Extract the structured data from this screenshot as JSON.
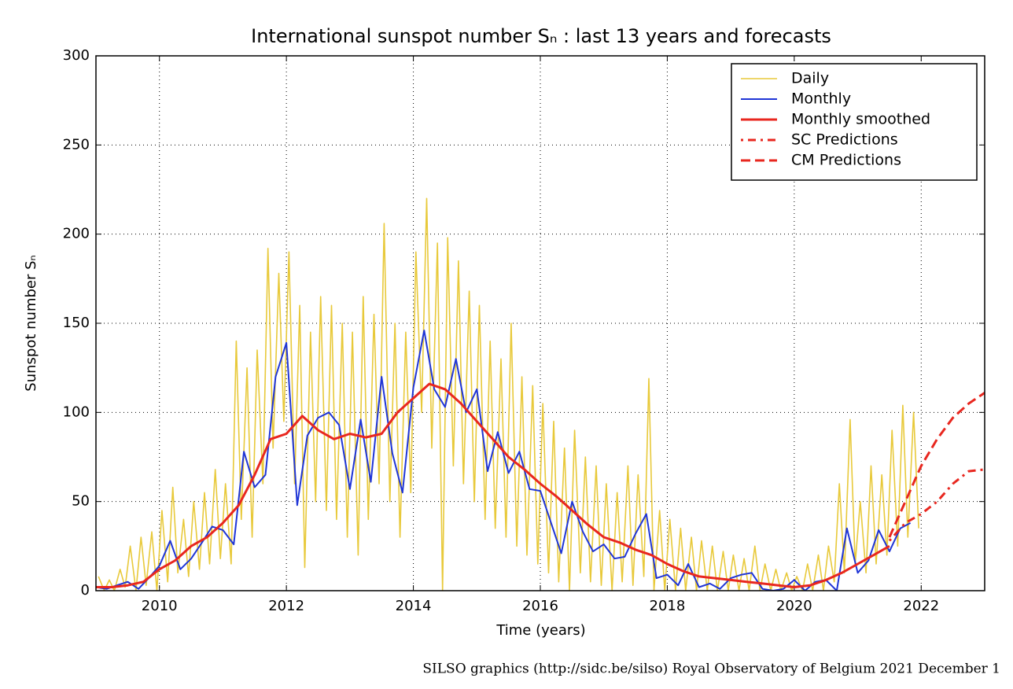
{
  "chart_data": {
    "type": "line",
    "title": "International sunspot number Sₙ : last 13 years and forecasts",
    "x_label": "Time (years)",
    "y_label": "Sunspot number Sₙ",
    "footer": "SILSO graphics (http://sidc.be/silso)  Royal Observatory of Belgium  2021 December 1",
    "xlim": [
      2009,
      2023
    ],
    "ylim": [
      0,
      300
    ],
    "xticks": [
      2010,
      2012,
      2014,
      2016,
      2018,
      2020,
      2022
    ],
    "yticks": [
      0,
      50,
      100,
      150,
      200,
      250,
      300
    ],
    "grid": true,
    "legend": "upper right",
    "series": [
      {
        "name": "Daily",
        "color": "#e8c93a",
        "dash": "solid",
        "width": 1.6,
        "x": [
          2009.04,
          2009.13,
          2009.21,
          2009.29,
          2009.38,
          2009.46,
          2009.54,
          2009.63,
          2009.71,
          2009.79,
          2009.88,
          2009.96,
          2010.04,
          2010.13,
          2010.21,
          2010.29,
          2010.38,
          2010.46,
          2010.54,
          2010.63,
          2010.71,
          2010.79,
          2010.88,
          2010.96,
          2011.04,
          2011.13,
          2011.21,
          2011.29,
          2011.38,
          2011.46,
          2011.54,
          2011.63,
          2011.71,
          2011.79,
          2011.88,
          2011.96,
          2012.04,
          2012.13,
          2012.21,
          2012.29,
          2012.38,
          2012.46,
          2012.54,
          2012.63,
          2012.71,
          2012.79,
          2012.88,
          2012.96,
          2013.04,
          2013.13,
          2013.21,
          2013.29,
          2013.38,
          2013.46,
          2013.54,
          2013.63,
          2013.71,
          2013.79,
          2013.88,
          2013.96,
          2014.04,
          2014.13,
          2014.21,
          2014.29,
          2014.38,
          2014.46,
          2014.54,
          2014.63,
          2014.71,
          2014.79,
          2014.88,
          2014.96,
          2015.04,
          2015.13,
          2015.21,
          2015.29,
          2015.38,
          2015.46,
          2015.54,
          2015.63,
          2015.71,
          2015.79,
          2015.88,
          2015.96,
          2016.04,
          2016.13,
          2016.21,
          2016.29,
          2016.38,
          2016.46,
          2016.54,
          2016.63,
          2016.71,
          2016.79,
          2016.88,
          2016.96,
          2017.04,
          2017.13,
          2017.21,
          2017.29,
          2017.38,
          2017.46,
          2017.54,
          2017.63,
          2017.71,
          2017.79,
          2017.88,
          2017.96,
          2018.04,
          2018.13,
          2018.21,
          2018.29,
          2018.38,
          2018.46,
          2018.54,
          2018.63,
          2018.71,
          2018.79,
          2018.88,
          2018.96,
          2019.04,
          2019.13,
          2019.21,
          2019.29,
          2019.38,
          2019.46,
          2019.54,
          2019.63,
          2019.71,
          2019.79,
          2019.88,
          2019.96,
          2020.04,
          2020.13,
          2020.21,
          2020.29,
          2020.38,
          2020.46,
          2020.54,
          2020.63,
          2020.71,
          2020.79,
          2020.88,
          2020.96,
          2021.04,
          2021.13,
          2021.21,
          2021.29,
          2021.38,
          2021.46,
          2021.54,
          2021.63,
          2021.71,
          2021.79,
          2021.88,
          2021.96
        ],
        "values": [
          8,
          0,
          6,
          0,
          12,
          2,
          25,
          0,
          30,
          3,
          33,
          0,
          45,
          5,
          58,
          10,
          40,
          8,
          50,
          12,
          55,
          15,
          68,
          18,
          60,
          15,
          140,
          40,
          125,
          30,
          135,
          60,
          192,
          80,
          178,
          95,
          190,
          60,
          160,
          13,
          145,
          50,
          165,
          45,
          160,
          40,
          150,
          30,
          145,
          20,
          165,
          40,
          155,
          60,
          206,
          50,
          150,
          30,
          145,
          55,
          190,
          100,
          220,
          80,
          195,
          0,
          198,
          70,
          185,
          60,
          168,
          50,
          160,
          40,
          140,
          35,
          130,
          30,
          150,
          25,
          120,
          20,
          115,
          15,
          105,
          10,
          95,
          5,
          80,
          0,
          90,
          10,
          75,
          5,
          70,
          3,
          60,
          0,
          55,
          5,
          70,
          3,
          65,
          8,
          119,
          0,
          45,
          0,
          40,
          0,
          35,
          0,
          30,
          0,
          28,
          0,
          25,
          0,
          22,
          0,
          20,
          0,
          18,
          0,
          25,
          0,
          15,
          0,
          12,
          0,
          10,
          0,
          8,
          0,
          15,
          0,
          20,
          0,
          25,
          5,
          60,
          10,
          96,
          15,
          50,
          10,
          70,
          15,
          65,
          20,
          90,
          25,
          104,
          30,
          100,
          35
        ]
      },
      {
        "name": "Monthly",
        "color": "#1f35d6",
        "dash": "solid",
        "width": 2,
        "x": [
          2009.0,
          2009.17,
          2009.33,
          2009.5,
          2009.67,
          2009.83,
          2010.0,
          2010.17,
          2010.33,
          2010.5,
          2010.67,
          2010.83,
          2011.0,
          2011.17,
          2011.33,
          2011.5,
          2011.67,
          2011.83,
          2012.0,
          2012.17,
          2012.33,
          2012.5,
          2012.67,
          2012.83,
          2013.0,
          2013.17,
          2013.33,
          2013.5,
          2013.67,
          2013.83,
          2014.0,
          2014.17,
          2014.33,
          2014.5,
          2014.67,
          2014.83,
          2015.0,
          2015.17,
          2015.33,
          2015.5,
          2015.67,
          2015.83,
          2016.0,
          2016.17,
          2016.33,
          2016.5,
          2016.67,
          2016.83,
          2017.0,
          2017.17,
          2017.33,
          2017.5,
          2017.67,
          2017.83,
          2018.0,
          2018.17,
          2018.33,
          2018.5,
          2018.67,
          2018.83,
          2019.0,
          2019.17,
          2019.33,
          2019.5,
          2019.67,
          2019.83,
          2020.0,
          2020.17,
          2020.33,
          2020.5,
          2020.67,
          2020.83,
          2021.0,
          2021.17,
          2021.33,
          2021.5,
          2021.67,
          2021.83
        ],
        "values": [
          2,
          1,
          3,
          5,
          1,
          7,
          14,
          28,
          12,
          18,
          27,
          36,
          34,
          26,
          78,
          58,
          65,
          120,
          139,
          48,
          87,
          97,
          100,
          93,
          57,
          96,
          61,
          120,
          77,
          55,
          114,
          146,
          113,
          103,
          130,
          100,
          113,
          67,
          89,
          66,
          78,
          57,
          56,
          38,
          21,
          50,
          33,
          22,
          26,
          18,
          19,
          32,
          43,
          7,
          9,
          3,
          15,
          2,
          4,
          1,
          7,
          9,
          10,
          1,
          0,
          1,
          6,
          0,
          5,
          6,
          0,
          35,
          10,
          17,
          34,
          22,
          35,
          38
        ]
      },
      {
        "name": "Monthly smoothed",
        "color": "#e8271f",
        "dash": "solid",
        "width": 3,
        "x": [
          2009,
          2009.25,
          2009.5,
          2009.75,
          2010,
          2010.25,
          2010.5,
          2010.75,
          2011,
          2011.25,
          2011.5,
          2011.75,
          2012,
          2012.25,
          2012.5,
          2012.75,
          2013,
          2013.25,
          2013.5,
          2013.75,
          2014,
          2014.25,
          2014.5,
          2014.75,
          2015,
          2015.25,
          2015.5,
          2015.75,
          2016,
          2016.25,
          2016.5,
          2016.75,
          2017,
          2017.25,
          2017.5,
          2017.75,
          2018,
          2018.25,
          2018.5,
          2018.75,
          2019,
          2019.25,
          2019.5,
          2019.75,
          2020,
          2020.25,
          2020.5,
          2020.75,
          2021,
          2021.25,
          2021.5
        ],
        "values": [
          2,
          2,
          3,
          5,
          12,
          17,
          25,
          30,
          38,
          48,
          65,
          85,
          88,
          98,
          90,
          85,
          88,
          86,
          88,
          100,
          108,
          116,
          113,
          105,
          95,
          85,
          75,
          68,
          60,
          53,
          45,
          37,
          30,
          27,
          23,
          20,
          15,
          11,
          8,
          7,
          6,
          5,
          4,
          3,
          2,
          3,
          6,
          10,
          15,
          20,
          25
        ]
      },
      {
        "name": "SC Predictions",
        "color": "#e8271f",
        "dash": "dashdot",
        "width": 3,
        "x": [
          2021.5,
          2021.75,
          2022,
          2022.25,
          2022.5,
          2022.75,
          2023
        ],
        "values": [
          28,
          38,
          43,
          50,
          60,
          67,
          68
        ]
      },
      {
        "name": "CM Predictions",
        "color": "#e8271f",
        "dash": "dashed",
        "width": 3,
        "x": [
          2021.5,
          2021.75,
          2022,
          2022.25,
          2022.5,
          2022.75,
          2023
        ],
        "values": [
          30,
          50,
          70,
          85,
          97,
          105,
          111
        ]
      }
    ]
  }
}
